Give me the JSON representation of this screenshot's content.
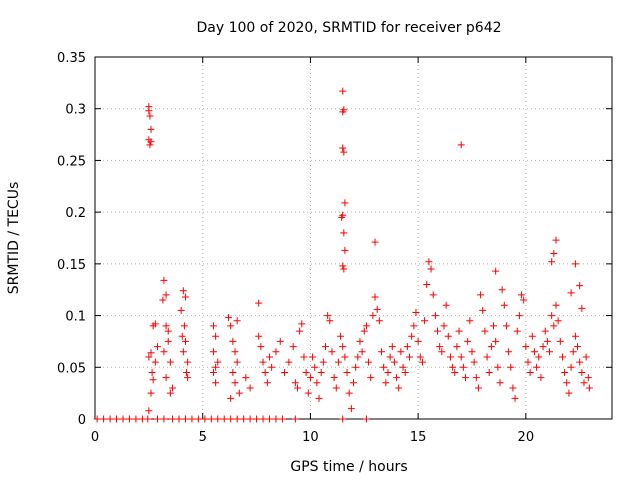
{
  "chart_data": {
    "type": "scatter",
    "title": "Day 100 of 2020, SRMTID for receiver p642",
    "xlabel": "GPS time / hours",
    "ylabel": "SRMTID / TECUs",
    "xlim": [
      0,
      24
    ],
    "ylim": [
      0,
      0.35
    ],
    "x_ticks": [
      "0",
      "5",
      "10",
      "15",
      "20"
    ],
    "y_ticks": [
      "0",
      "0.05",
      "0.1",
      "0.15",
      "0.2",
      "0.25",
      "0.3",
      "0.35"
    ],
    "grid": true,
    "marker": "+",
    "series_color": "#ff0000",
    "series": [
      {
        "name": "SRMTID",
        "points": [
          [
            2.5,
            0.302
          ],
          [
            2.5,
            0.298
          ],
          [
            2.55,
            0.293
          ],
          [
            2.5,
            0.27
          ],
          [
            2.55,
            0.265
          ],
          [
            2.6,
            0.28
          ],
          [
            2.6,
            0.268
          ],
          [
            11.5,
            0.317
          ],
          [
            11.55,
            0.299
          ],
          [
            11.5,
            0.297
          ],
          [
            11.5,
            0.262
          ],
          [
            11.55,
            0.258
          ],
          [
            11.6,
            0.209
          ],
          [
            11.5,
            0.197
          ],
          [
            11.45,
            0.195
          ],
          [
            11.55,
            0.18
          ],
          [
            11.6,
            0.163
          ],
          [
            11.5,
            0.148
          ],
          [
            11.55,
            0.145
          ],
          [
            17.0,
            0.265
          ],
          [
            13.0,
            0.171
          ],
          [
            18.6,
            0.143
          ],
          [
            21.4,
            0.173
          ],
          [
            21.3,
            0.16
          ],
          [
            21.2,
            0.152
          ],
          [
            22.3,
            0.15
          ],
          [
            22.5,
            0.129
          ],
          [
            22.6,
            0.107
          ],
          [
            22.1,
            0.122
          ],
          [
            2.5,
            0.06
          ],
          [
            2.6,
            0.064
          ],
          [
            2.7,
            0.09
          ],
          [
            2.8,
            0.092
          ],
          [
            2.7,
            0.038
          ],
          [
            2.6,
            0.025
          ],
          [
            2.5,
            0.008
          ],
          [
            2.9,
            0.07
          ],
          [
            2.8,
            0.055
          ],
          [
            2.65,
            0.045
          ],
          [
            3.2,
            0.134
          ],
          [
            3.3,
            0.12
          ],
          [
            3.15,
            0.115
          ],
          [
            3.3,
            0.09
          ],
          [
            3.4,
            0.075
          ],
          [
            3.2,
            0.065
          ],
          [
            3.3,
            0.04
          ],
          [
            3.5,
            0.055
          ],
          [
            3.6,
            0.03
          ],
          [
            3.5,
            0.025
          ],
          [
            3.4,
            0.085
          ],
          [
            4.1,
            0.124
          ],
          [
            4.2,
            0.118
          ],
          [
            4.0,
            0.105
          ],
          [
            4.15,
            0.09
          ],
          [
            4.2,
            0.075
          ],
          [
            4.1,
            0.065
          ],
          [
            4.3,
            0.055
          ],
          [
            4.25,
            0.045
          ],
          [
            4.05,
            0.08
          ],
          [
            4.3,
            0.04
          ],
          [
            5.5,
            0.09
          ],
          [
            5.6,
            0.08
          ],
          [
            5.5,
            0.065
          ],
          [
            5.6,
            0.05
          ],
          [
            5.5,
            0.045
          ],
          [
            5.7,
            0.055
          ],
          [
            5.6,
            0.035
          ],
          [
            6.2,
            0.098
          ],
          [
            6.3,
            0.09
          ],
          [
            6.4,
            0.075
          ],
          [
            6.5,
            0.065
          ],
          [
            6.6,
            0.055
          ],
          [
            6.4,
            0.045
          ],
          [
            6.5,
            0.035
          ],
          [
            6.7,
            0.025
          ],
          [
            6.3,
            0.02
          ],
          [
            6.6,
            0.095
          ],
          [
            7.0,
            0.04
          ],
          [
            7.2,
            0.03
          ],
          [
            7.6,
            0.112
          ],
          [
            7.6,
            0.08
          ],
          [
            7.7,
            0.07
          ],
          [
            7.8,
            0.055
          ],
          [
            7.9,
            0.045
          ],
          [
            8.0,
            0.035
          ],
          [
            8.1,
            0.06
          ],
          [
            8.2,
            0.05
          ],
          [
            8.4,
            0.065
          ],
          [
            8.6,
            0.075
          ],
          [
            8.8,
            0.045
          ],
          [
            9.0,
            0.055
          ],
          [
            9.2,
            0.07
          ],
          [
            9.3,
            0.035
          ],
          [
            9.4,
            0.03
          ],
          [
            9.5,
            0.085
          ],
          [
            9.6,
            0.092
          ],
          [
            9.7,
            0.06
          ],
          [
            9.8,
            0.045
          ],
          [
            9.9,
            0.025
          ],
          [
            10.0,
            0.04
          ],
          [
            10.1,
            0.06
          ],
          [
            10.2,
            0.05
          ],
          [
            10.3,
            0.035
          ],
          [
            10.4,
            0.02
          ],
          [
            10.5,
            0.045
          ],
          [
            10.6,
            0.055
          ],
          [
            10.7,
            0.07
          ],
          [
            10.8,
            0.1
          ],
          [
            10.9,
            0.095
          ],
          [
            11.0,
            0.065
          ],
          [
            11.1,
            0.04
          ],
          [
            11.2,
            0.03
          ],
          [
            11.3,
            0.055
          ],
          [
            11.4,
            0.08
          ],
          [
            11.5,
            0.07
          ],
          [
            11.6,
            0.06
          ],
          [
            11.7,
            0.045
          ],
          [
            11.8,
            0.025
          ],
          [
            11.9,
            0.01
          ],
          [
            12.0,
            0.035
          ],
          [
            12.1,
            0.05
          ],
          [
            12.2,
            0.06
          ],
          [
            12.3,
            0.075
          ],
          [
            12.4,
            0.065
          ],
          [
            12.5,
            0.085
          ],
          [
            12.6,
            0.09
          ],
          [
            12.7,
            0.055
          ],
          [
            12.8,
            0.04
          ],
          [
            12.9,
            0.1
          ],
          [
            13.0,
            0.118
          ],
          [
            13.1,
            0.106
          ],
          [
            13.2,
            0.095
          ],
          [
            13.3,
            0.065
          ],
          [
            13.4,
            0.05
          ],
          [
            13.5,
            0.035
          ],
          [
            13.6,
            0.045
          ],
          [
            13.7,
            0.06
          ],
          [
            13.8,
            0.07
          ],
          [
            13.9,
            0.055
          ],
          [
            14.0,
            0.04
          ],
          [
            14.1,
            0.03
          ],
          [
            14.2,
            0.065
          ],
          [
            14.3,
            0.05
          ],
          [
            14.4,
            0.045
          ],
          [
            14.5,
            0.07
          ],
          [
            14.6,
            0.06
          ],
          [
            14.7,
            0.08
          ],
          [
            14.8,
            0.09
          ],
          [
            14.9,
            0.103
          ],
          [
            15.0,
            0.075
          ],
          [
            15.1,
            0.06
          ],
          [
            15.2,
            0.055
          ],
          [
            15.3,
            0.095
          ],
          [
            15.4,
            0.13
          ],
          [
            15.5,
            0.152
          ],
          [
            15.6,
            0.145
          ],
          [
            15.7,
            0.12
          ],
          [
            15.8,
            0.1
          ],
          [
            15.9,
            0.085
          ],
          [
            16.0,
            0.07
          ],
          [
            16.1,
            0.065
          ],
          [
            16.2,
            0.09
          ],
          [
            16.3,
            0.11
          ],
          [
            16.4,
            0.08
          ],
          [
            16.5,
            0.06
          ],
          [
            16.6,
            0.05
          ],
          [
            16.7,
            0.045
          ],
          [
            16.8,
            0.07
          ],
          [
            16.9,
            0.085
          ],
          [
            17.0,
            0.06
          ],
          [
            17.1,
            0.05
          ],
          [
            17.2,
            0.04
          ],
          [
            17.3,
            0.075
          ],
          [
            17.4,
            0.095
          ],
          [
            17.5,
            0.065
          ],
          [
            17.6,
            0.055
          ],
          [
            17.7,
            0.04
          ],
          [
            17.8,
            0.03
          ],
          [
            17.9,
            0.12
          ],
          [
            18.0,
            0.105
          ],
          [
            18.1,
            0.085
          ],
          [
            18.2,
            0.06
          ],
          [
            18.3,
            0.045
          ],
          [
            18.4,
            0.07
          ],
          [
            18.5,
            0.09
          ],
          [
            18.6,
            0.075
          ],
          [
            18.7,
            0.05
          ],
          [
            18.8,
            0.035
          ],
          [
            18.9,
            0.125
          ],
          [
            19.0,
            0.11
          ],
          [
            19.1,
            0.09
          ],
          [
            19.2,
            0.065
          ],
          [
            19.3,
            0.05
          ],
          [
            19.4,
            0.03
          ],
          [
            19.5,
            0.02
          ],
          [
            19.6,
            0.085
          ],
          [
            19.7,
            0.1
          ],
          [
            19.8,
            0.12
          ],
          [
            19.9,
            0.115
          ],
          [
            20.0,
            0.07
          ],
          [
            20.1,
            0.055
          ],
          [
            20.2,
            0.045
          ],
          [
            20.3,
            0.08
          ],
          [
            20.4,
            0.065
          ],
          [
            20.5,
            0.05
          ],
          [
            20.6,
            0.06
          ],
          [
            20.7,
            0.04
          ],
          [
            20.8,
            0.07
          ],
          [
            20.9,
            0.085
          ],
          [
            21.0,
            0.075
          ],
          [
            21.1,
            0.065
          ],
          [
            21.2,
            0.1
          ],
          [
            21.3,
            0.09
          ],
          [
            21.4,
            0.11
          ],
          [
            21.5,
            0.095
          ],
          [
            21.6,
            0.075
          ],
          [
            21.7,
            0.06
          ],
          [
            21.8,
            0.045
          ],
          [
            21.9,
            0.035
          ],
          [
            22.0,
            0.025
          ],
          [
            22.1,
            0.05
          ],
          [
            22.2,
            0.065
          ],
          [
            22.3,
            0.08
          ],
          [
            22.4,
            0.07
          ],
          [
            22.5,
            0.055
          ],
          [
            22.6,
            0.045
          ],
          [
            22.7,
            0.035
          ],
          [
            22.8,
            0.06
          ],
          [
            22.9,
            0.04
          ],
          [
            22.95,
            0.03
          ],
          [
            0.1,
            0
          ],
          [
            0.4,
            0
          ],
          [
            0.7,
            0
          ],
          [
            1.0,
            0
          ],
          [
            1.3,
            0
          ],
          [
            1.6,
            0
          ],
          [
            1.9,
            0
          ],
          [
            2.2,
            0
          ],
          [
            2.45,
            0
          ],
          [
            2.9,
            0
          ],
          [
            3.2,
            0
          ],
          [
            3.6,
            0
          ],
          [
            3.9,
            0
          ],
          [
            4.2,
            0
          ],
          [
            4.5,
            0
          ],
          [
            4.8,
            0
          ],
          [
            5.1,
            0
          ],
          [
            5.4,
            0
          ],
          [
            5.7,
            0
          ],
          [
            6.0,
            0
          ],
          [
            6.3,
            0
          ],
          [
            6.6,
            0
          ],
          [
            6.9,
            0
          ],
          [
            7.2,
            0
          ],
          [
            7.5,
            0
          ],
          [
            7.8,
            0
          ],
          [
            8.1,
            0
          ],
          [
            8.4,
            0
          ],
          [
            8.7,
            0
          ],
          [
            9.3,
            0
          ],
          [
            11.5,
            0
          ],
          [
            12.6,
            0
          ]
        ]
      }
    ]
  }
}
